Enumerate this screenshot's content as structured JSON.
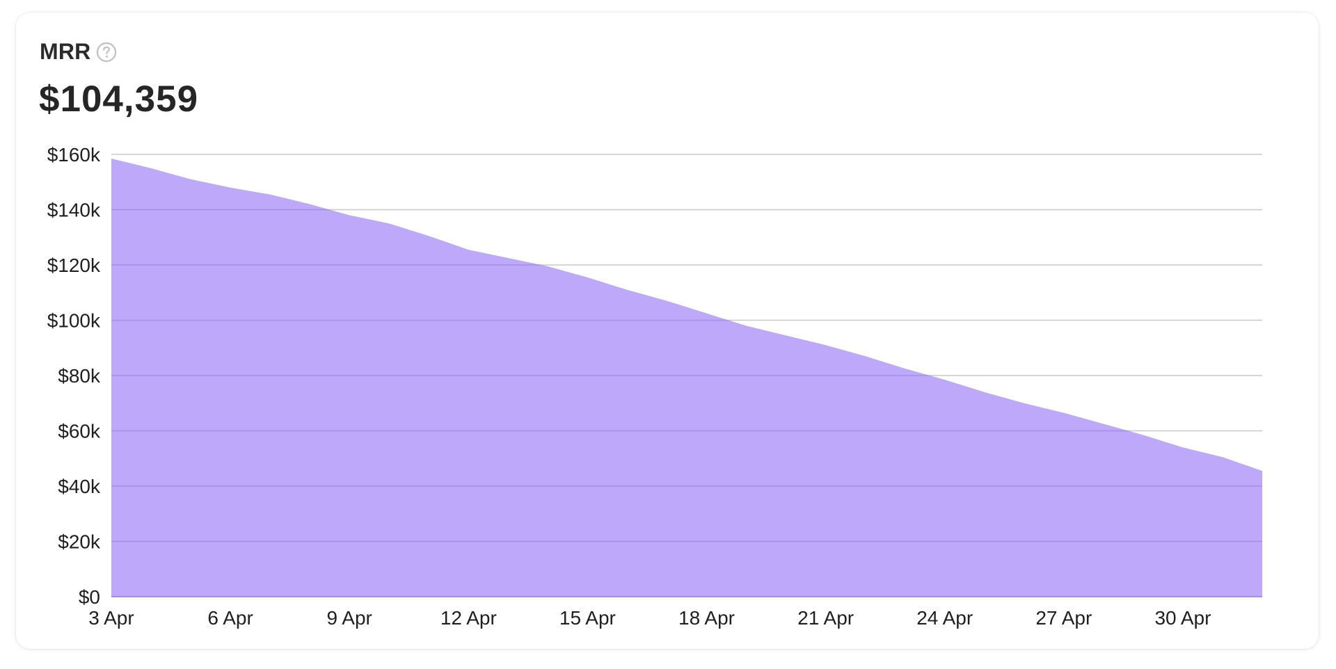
{
  "card": {
    "title": "MRR",
    "help_icon": "question-circle-icon",
    "value": "$104,359"
  },
  "colors": {
    "area_fill": "#bda8f9",
    "grid_line": "#c8c8c8",
    "grid_line_over_area": "#a38fe6"
  },
  "chart_data": {
    "type": "area",
    "title": "MRR",
    "xlabel": "",
    "ylabel": "",
    "ylim": [
      0,
      160000
    ],
    "grid": true,
    "y_ticks": [
      0,
      20000,
      40000,
      60000,
      80000,
      100000,
      120000,
      140000,
      160000
    ],
    "y_tick_labels": [
      "$0",
      "$20k",
      "$40k",
      "$60k",
      "$80k",
      "$100k",
      "$120k",
      "$140k",
      "$160k"
    ],
    "x_tick_labels": [
      "3 Apr",
      "6 Apr",
      "9 Apr",
      "12 Apr",
      "15 Apr",
      "18 Apr",
      "21 Apr",
      "24 Apr",
      "27 Apr",
      "30 Apr"
    ],
    "x_tick_indices": [
      0,
      3,
      6,
      9,
      12,
      15,
      18,
      21,
      24,
      27
    ],
    "x": [
      "3 Apr",
      "4 Apr",
      "5 Apr",
      "6 Apr",
      "7 Apr",
      "8 Apr",
      "9 Apr",
      "10 Apr",
      "11 Apr",
      "12 Apr",
      "13 Apr",
      "14 Apr",
      "15 Apr",
      "16 Apr",
      "17 Apr",
      "18 Apr",
      "19 Apr",
      "20 Apr",
      "21 Apr",
      "22 Apr",
      "23 Apr",
      "24 Apr",
      "25 Apr",
      "26 Apr",
      "27 Apr",
      "28 Apr",
      "29 Apr",
      "30 Apr",
      "1 May",
      "2 May"
    ],
    "series": [
      {
        "values": [
          158500,
          155000,
          151000,
          148000,
          145500,
          142000,
          138000,
          135000,
          130500,
          125500,
          122500,
          119500,
          115500,
          111000,
          107000,
          102500,
          98000,
          94500,
          91000,
          87000,
          82500,
          78500,
          74000,
          70000,
          66500,
          62500,
          58500,
          54000,
          50500,
          45500
        ]
      }
    ]
  }
}
